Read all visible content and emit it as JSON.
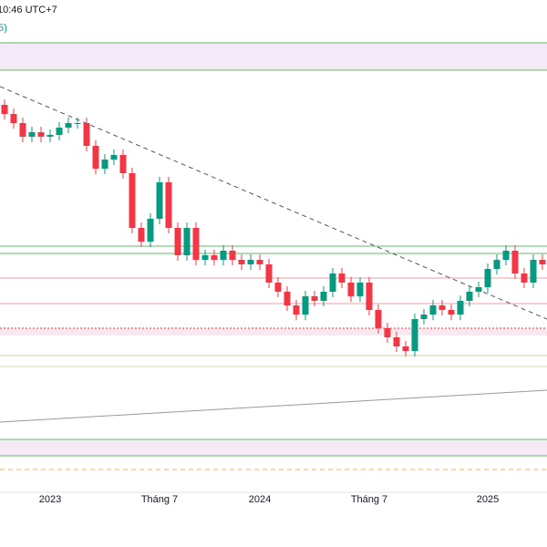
{
  "chart_data": {
    "type": "candlestick",
    "header": "10:46 UTC+7",
    "legend_fragment": "5)",
    "categories": [
      null,
      null,
      null,
      null,
      null,
      "2023",
      null,
      null,
      null,
      null,
      null,
      null,
      null,
      null,
      null,
      null,
      null,
      "Tháng 7",
      null,
      null,
      null,
      null,
      null,
      null,
      null,
      null,
      null,
      null,
      "2024",
      null,
      null,
      null,
      null,
      null,
      null,
      null,
      null,
      null,
      null,
      null,
      "Tháng 7",
      null,
      null,
      null,
      null,
      null,
      null,
      null,
      null,
      null,
      null,
      null,
      null,
      "2025",
      null,
      null,
      null,
      null,
      null,
      null
    ],
    "open": [
      425,
      415,
      405,
      390,
      395,
      390,
      392,
      400,
      405,
      405,
      380,
      355,
      365,
      370,
      350,
      290,
      275,
      300,
      340,
      290,
      260,
      290,
      255,
      260,
      255,
      265,
      255,
      250,
      255,
      250,
      230,
      220,
      205,
      195,
      215,
      210,
      220,
      240,
      230,
      215,
      230,
      200,
      180,
      170,
      160,
      155,
      190,
      195,
      205,
      200,
      195,
      210,
      220,
      225,
      245,
      255,
      265,
      240,
      230,
      255
    ],
    "high": [
      431,
      421,
      411,
      401,
      401,
      398,
      406,
      411,
      411,
      411,
      386,
      371,
      376,
      376,
      356,
      296,
      306,
      346,
      346,
      296,
      296,
      296,
      266,
      266,
      271,
      271,
      261,
      261,
      261,
      256,
      236,
      226,
      211,
      221,
      221,
      226,
      246,
      246,
      236,
      236,
      236,
      206,
      186,
      176,
      166,
      196,
      201,
      211,
      211,
      206,
      216,
      226,
      231,
      251,
      261,
      271,
      271,
      246,
      261,
      261
    ],
    "low": [
      409,
      399,
      384,
      384,
      384,
      384,
      386,
      394,
      399,
      374,
      349,
      349,
      359,
      344,
      284,
      269,
      269,
      294,
      284,
      254,
      254,
      249,
      249,
      249,
      249,
      249,
      244,
      244,
      244,
      224,
      214,
      199,
      189,
      189,
      204,
      204,
      214,
      224,
      209,
      209,
      194,
      174,
      164,
      154,
      149,
      149,
      184,
      189,
      194,
      189,
      189,
      204,
      214,
      219,
      239,
      249,
      234,
      224,
      224,
      244
    ],
    "close": [
      415,
      405,
      390,
      395,
      390,
      392,
      400,
      405,
      405,
      380,
      355,
      365,
      370,
      350,
      290,
      275,
      300,
      340,
      290,
      260,
      290,
      255,
      260,
      255,
      265,
      255,
      250,
      255,
      250,
      230,
      220,
      205,
      195,
      215,
      210,
      220,
      240,
      230,
      215,
      230,
      200,
      180,
      170,
      160,
      155,
      190,
      195,
      205,
      200,
      195,
      210,
      220,
      225,
      245,
      255,
      265,
      240,
      230,
      255,
      250
    ],
    "up_color": "#089981",
    "down_color": "#f23645",
    "ylim": [
      0,
      540
    ],
    "levels": [
      {
        "value": 493,
        "color": "#66bb6a",
        "style": "solid"
      },
      {
        "value": 463,
        "color": "#66bb6a",
        "style": "solid"
      },
      {
        "value": 270,
        "color": "#66bb6a",
        "style": "solid"
      },
      {
        "value": 262,
        "color": "#66bb6a",
        "style": "solid"
      },
      {
        "value": 235,
        "color": "#e8a0a8",
        "style": "solid"
      },
      {
        "value": 207,
        "color": "#e8a0a8",
        "style": "solid"
      },
      {
        "value": 180,
        "color": "#f23645",
        "style": "dotted"
      },
      {
        "value": 150,
        "color": "#c8d8a0",
        "style": "solid"
      },
      {
        "value": 138,
        "color": "#d8d8a0",
        "style": "solid"
      },
      {
        "value": 58,
        "color": "#66bb6a",
        "style": "solid"
      },
      {
        "value": 40,
        "color": "#66bb6a",
        "style": "solid"
      },
      {
        "value": 25,
        "color": "#f0b060",
        "style": "dashed"
      }
    ],
    "bands": [
      {
        "from": 463,
        "to": 493,
        "color": "#f5eaf8"
      },
      {
        "from": 172,
        "to": 180,
        "color": "#f8e8f0"
      },
      {
        "from": 40,
        "to": 58,
        "color": "#f5eaf8"
      }
    ],
    "trendlines": [
      {
        "from": [
          -0.5,
          445
        ],
        "to": [
          59.5,
          190
        ],
        "color": "#555555",
        "style": "dashed"
      },
      {
        "from": [
          -0.5,
          77
        ],
        "to": [
          59.5,
          112
        ],
        "color": "#999999",
        "style": "solid"
      }
    ]
  }
}
